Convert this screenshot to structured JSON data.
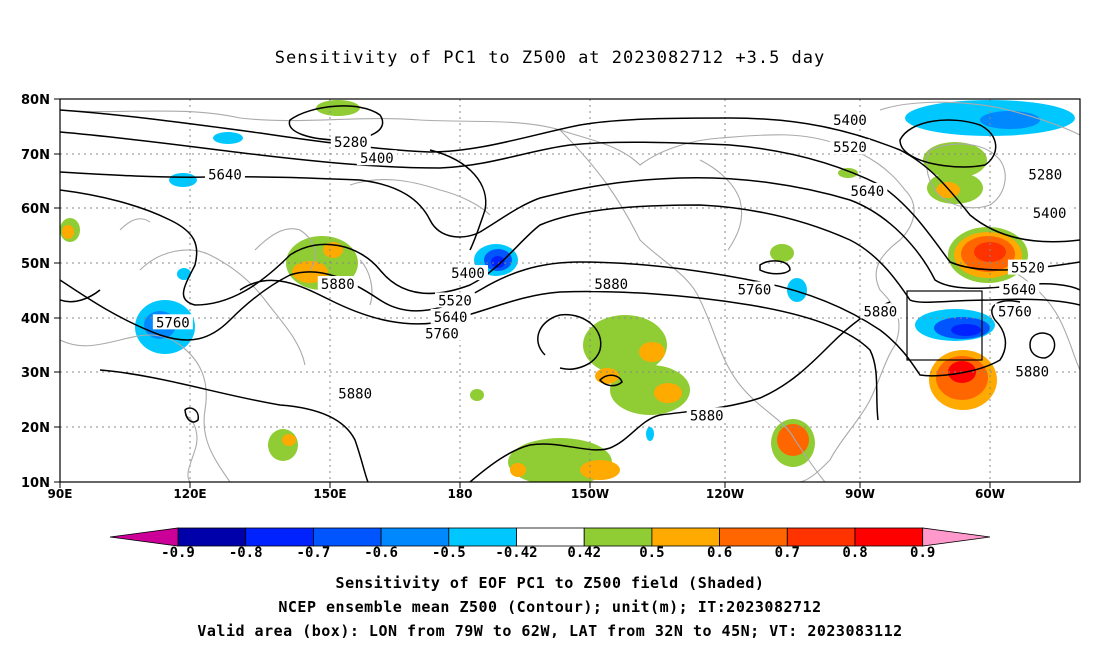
{
  "title": "Sensitivity of PC1 to Z500 at 2023082712 +3.5 day",
  "map": {
    "lat_labels": [
      "80N",
      "70N",
      "60N",
      "50N",
      "40N",
      "30N",
      "20N",
      "10N"
    ],
    "lon_labels": [
      "90E",
      "120E",
      "150E",
      "180",
      "150W",
      "120W",
      "90W",
      "60W"
    ],
    "lon_range_deg": [
      90,
      325
    ],
    "lat_range_deg": [
      10,
      80
    ],
    "contour_labels": [
      {
        "text": "5280",
        "lon": 157,
        "lat": 72
      },
      {
        "text": "5400",
        "lon": 163,
        "lat": 69
      },
      {
        "text": "5640",
        "lon": 128,
        "lat": 66
      },
      {
        "text": "5400",
        "lon": 272,
        "lat": 76
      },
      {
        "text": "5520",
        "lon": 272,
        "lat": 71
      },
      {
        "text": "5640",
        "lon": 276,
        "lat": 63
      },
      {
        "text": "5280",
        "lon": 317,
        "lat": 66
      },
      {
        "text": "5400",
        "lon": 318,
        "lat": 59
      },
      {
        "text": "5520",
        "lon": 313,
        "lat": 49
      },
      {
        "text": "5640",
        "lon": 311,
        "lat": 45
      },
      {
        "text": "5760",
        "lon": 310,
        "lat": 41
      },
      {
        "text": "5880",
        "lon": 314,
        "lat": 30
      },
      {
        "text": "5400",
        "lon": 184,
        "lat": 48
      },
      {
        "text": "5520",
        "lon": 181,
        "lat": 43
      },
      {
        "text": "5640",
        "lon": 180,
        "lat": 40
      },
      {
        "text": "5760",
        "lon": 178,
        "lat": 37
      },
      {
        "text": "5880",
        "lon": 154,
        "lat": 46
      },
      {
        "text": "5760",
        "lon": 116,
        "lat": 39
      },
      {
        "text": "5880",
        "lon": 158,
        "lat": 26
      },
      {
        "text": "5880",
        "lon": 217,
        "lat": 46
      },
      {
        "text": "5760",
        "lon": 250,
        "lat": 45
      },
      {
        "text": "5880",
        "lon": 279,
        "lat": 41
      },
      {
        "text": "5880",
        "lon": 239,
        "lat": 22
      }
    ],
    "valid_box": {
      "lon_min": 281,
      "lon_max": 298,
      "lat_min": 32,
      "lat_max": 45
    }
  },
  "colorbar": {
    "labels": [
      "-0.9",
      "-0.8",
      "-0.7",
      "-0.6",
      "-0.5",
      "-0.42",
      "0.42",
      "0.5",
      "0.6",
      "0.7",
      "0.8",
      "0.9"
    ],
    "colors": [
      "#cc0099",
      "#0000aa",
      "#0022ff",
      "#0055ff",
      "#0088ff",
      "#00c8ff",
      "#ffffff",
      "#90cc33",
      "#ffaa00",
      "#ff6600",
      "#ff3300",
      "#ff0000",
      "#ff99cc"
    ]
  },
  "captions": {
    "line1": "Sensitivity of EOF PC1 to Z500 field (Shaded)",
    "line2": "NCEP ensemble mean Z500 (Contour); unit(m); IT:2023082712",
    "line3": "Valid area (box): LON from 79W to 62W, LAT from 32N to 45N; VT: 2023083112"
  }
}
